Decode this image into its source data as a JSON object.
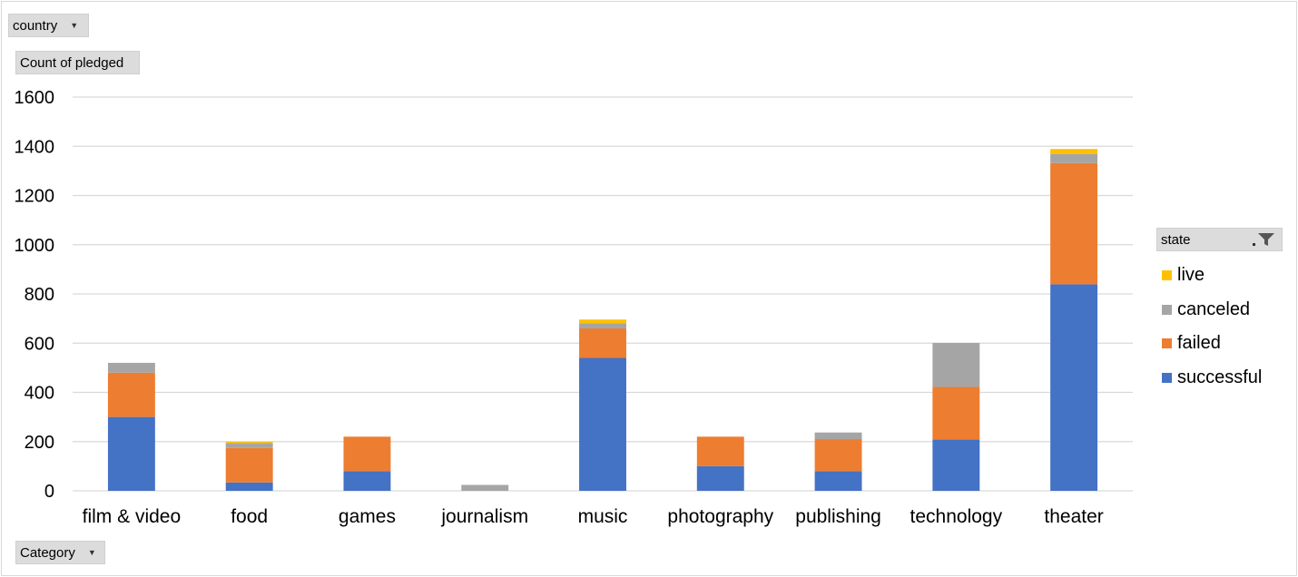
{
  "filters": {
    "country_label": "country",
    "value_label": "Count of pledged",
    "axis_field_label": "Category",
    "legend_field_label": "state"
  },
  "colors": {
    "successful": "#4472c4",
    "failed": "#ed7d31",
    "canceled": "#a5a5a5",
    "live": "#ffc000",
    "grid": "#d9d9d9"
  },
  "legend": [
    {
      "name": "live",
      "color": "#ffc000"
    },
    {
      "name": "canceled",
      "color": "#a5a5a5"
    },
    {
      "name": "failed",
      "color": "#ed7d31"
    },
    {
      "name": "successful",
      "color": "#4472c4"
    }
  ],
  "chart_data": {
    "type": "bar",
    "stacked": true,
    "categories": [
      "film & video",
      "food",
      "games",
      "journalism",
      "music",
      "photography",
      "publishing",
      "technology",
      "theater"
    ],
    "series": [
      {
        "name": "successful",
        "values": [
          300,
          34,
          80,
          0,
          540,
          100,
          80,
          209,
          839
        ]
      },
      {
        "name": "failed",
        "values": [
          180,
          140,
          140,
          0,
          120,
          120,
          130,
          213,
          493
        ]
      },
      {
        "name": "canceled",
        "values": [
          40,
          20,
          0,
          24,
          20,
          0,
          27,
          179,
          37
        ]
      },
      {
        "name": "live",
        "values": [
          0,
          5,
          0,
          0,
          16,
          0,
          0,
          0,
          20
        ]
      }
    ],
    "ylim": [
      0,
      1600
    ],
    "yticks": [
      0,
      200,
      400,
      600,
      800,
      1000,
      1200,
      1400,
      1600
    ],
    "grid": true,
    "legend_position": "right"
  }
}
